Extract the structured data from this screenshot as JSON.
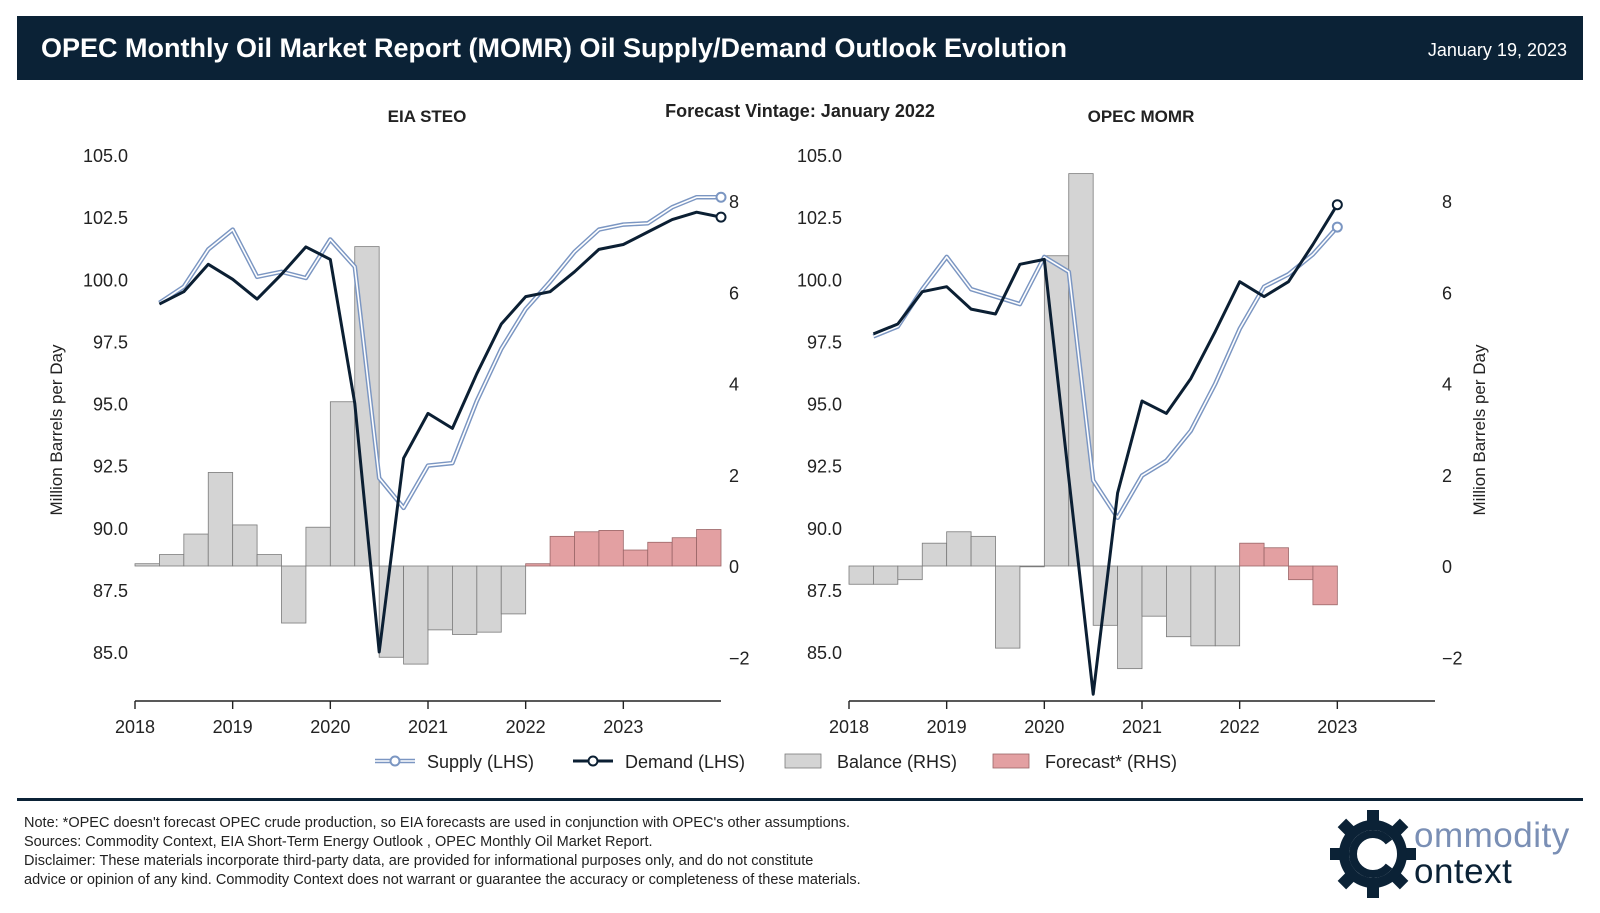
{
  "header": {
    "title": "OPEC Monthly Oil Market Report (MOMR) Oil Supply/Demand Outlook Evolution",
    "date": "January 19, 2023"
  },
  "vintage": "Forecast Vintage: January 2022",
  "colors": {
    "header_bg": "#0b2236",
    "supply": "#7b96c2",
    "demand": "#0b1f33",
    "balance": "#d4d4d4",
    "forecast": "#e3a0a2"
  },
  "legend": [
    {
      "key": "supply",
      "label": "Supply (LHS)"
    },
    {
      "key": "demand",
      "label": "Demand (LHS)"
    },
    {
      "key": "balance",
      "label": "Balance (RHS)"
    },
    {
      "key": "forecast",
      "label": "Forecast* (RHS)"
    }
  ],
  "chart_data": [
    {
      "type": "bar+line",
      "title": "EIA STEO",
      "ylabel": "Million Barrels per Day",
      "y2label": "",
      "xlim": [
        2018,
        2024
      ],
      "ylim": [
        83,
        106
      ],
      "y2lim": [
        -2.95,
        10.05
      ],
      "xticks": [
        "2018",
        "2019",
        "2020",
        "2021",
        "2022",
        "2023"
      ],
      "yticks": [
        "85.0",
        "87.5",
        "90.0",
        "92.5",
        "95.0",
        "97.5",
        "100.0",
        "102.5",
        "105.0"
      ],
      "y2ticks": [
        "−2",
        "0",
        "2",
        "4",
        "6",
        "8"
      ],
      "x": [
        2018.25,
        2018.5,
        2018.75,
        2019.0,
        2019.25,
        2019.5,
        2019.75,
        2020.0,
        2020.25,
        2020.5,
        2020.75,
        2021.0,
        2021.25,
        2021.5,
        2021.75,
        2022.0,
        2022.25,
        2022.5,
        2022.75,
        2023.0,
        2023.25,
        2023.5,
        2023.75,
        2024.0
      ],
      "series": [
        {
          "name": "Supply (LHS)",
          "values": [
            99.05,
            99.7,
            101.2,
            102.0,
            100.1,
            100.3,
            100.05,
            101.6,
            100.5,
            92.0,
            90.8,
            92.5,
            92.6,
            95.1,
            97.2,
            98.8,
            99.9,
            101.1,
            102.0,
            102.2,
            102.25,
            102.9,
            103.3,
            103.3
          ]
        },
        {
          "name": "Demand (LHS)",
          "values": [
            99.0,
            99.5,
            100.6,
            100.0,
            99.2,
            100.2,
            101.3,
            100.8,
            95.0,
            85.0,
            92.8,
            94.6,
            94.0,
            96.2,
            98.2,
            99.3,
            99.5,
            100.3,
            101.2,
            101.4,
            101.9,
            102.4,
            102.7,
            102.5
          ]
        }
      ],
      "bars_start": 2018.0,
      "bar_width": 0.25,
      "balance": [
        0.05,
        0.25,
        0.7,
        2.05,
        0.9,
        0.25,
        -1.25,
        0.85,
        3.6,
        7.0,
        -2.0,
        -2.15,
        -1.4,
        -1.5,
        -1.45,
        -1.05
      ],
      "forecast": [
        0.05,
        0.65,
        0.75,
        0.78,
        0.35,
        0.52,
        0.62,
        0.8
      ]
    },
    {
      "type": "bar+line",
      "title": "OPEC MOMR",
      "ylabel": "",
      "y2label": "Million Barrels per Day",
      "xlim": [
        2018,
        2024
      ],
      "ylim": [
        83,
        106
      ],
      "y2lim": [
        -2.95,
        10.05
      ],
      "xticks": [
        "2018",
        "2019",
        "2020",
        "2021",
        "2022",
        "2023"
      ],
      "yticks": [
        "85.0",
        "87.5",
        "90.0",
        "92.5",
        "95.0",
        "97.5",
        "100.0",
        "102.5",
        "105.0"
      ],
      "y2ticks": [
        "−2",
        "0",
        "2",
        "4",
        "6",
        "8"
      ],
      "x": [
        2018.25,
        2018.5,
        2018.75,
        2019.0,
        2019.25,
        2019.5,
        2019.75,
        2020.0,
        2020.25,
        2020.5,
        2020.75,
        2021.0,
        2021.25,
        2021.5,
        2021.75,
        2022.0,
        2022.25,
        2022.5,
        2022.75,
        2023.0
      ],
      "series": [
        {
          "name": "Supply (LHS)",
          "values": [
            97.7,
            98.1,
            99.6,
            100.9,
            99.6,
            99.3,
            99.0,
            100.9,
            100.3,
            91.9,
            90.4,
            92.1,
            92.7,
            93.9,
            95.8,
            98.0,
            99.7,
            100.2,
            101.0,
            102.1
          ]
        },
        {
          "name": "Demand (LHS)",
          "values": [
            97.8,
            98.2,
            99.5,
            99.7,
            98.8,
            98.6,
            100.6,
            100.8,
            92.0,
            83.3,
            91.4,
            95.1,
            94.6,
            96.0,
            97.9,
            99.9,
            99.3,
            99.9,
            101.4,
            103.0
          ]
        }
      ],
      "bars_start": 2018.0,
      "bar_width": 0.25,
      "balance": [
        -0.4,
        -0.4,
        -0.3,
        0.5,
        0.75,
        0.65,
        -1.8,
        0.0,
        6.8,
        8.6,
        -1.3,
        -2.25,
        -1.1,
        -1.55,
        -1.75,
        -1.75
      ],
      "forecast": [
        0.5,
        0.4,
        -0.3,
        -0.85
      ]
    }
  ],
  "footer": {
    "note": "Note: *OPEC doesn't forecast OPEC crude production, so EIA forecasts are used in conjunction with OPEC's other assumptions.",
    "sources": "Sources: Commodity Context, EIA Short-Term Energy Outlook , OPEC Monthly Oil Market Report.",
    "disclaimer_1": "Disclaimer: These materials incorporate third-party data, are provided for informational purposes only, and do not constitute",
    "disclaimer_2": "advice or opinion of any kind. Commodity Context does not warrant or guarantee the accuracy or completeness of these materials."
  },
  "logo": {
    "word1": "ommodity",
    "word2": "ontext"
  }
}
